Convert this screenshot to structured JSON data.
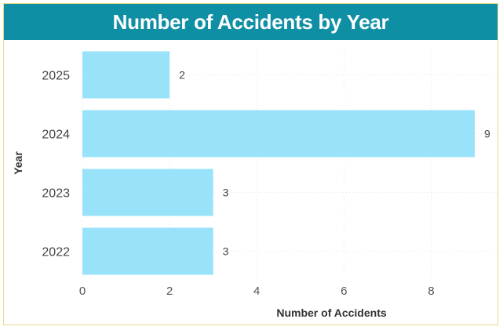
{
  "chart_data": {
    "type": "bar",
    "orientation": "horizontal",
    "title": "Number of Accidents by Year",
    "xlabel": "Number of Accidents",
    "ylabel": "Year",
    "categories": [
      "2025",
      "2024",
      "2023",
      "2022"
    ],
    "values": [
      2,
      9,
      3,
      3
    ],
    "xlim": [
      0,
      9
    ],
    "xticks": [
      0,
      2,
      4,
      6,
      8
    ],
    "grid": true,
    "bar_color": "#99e3fa",
    "title_bar_color": "#0f8fa3"
  }
}
